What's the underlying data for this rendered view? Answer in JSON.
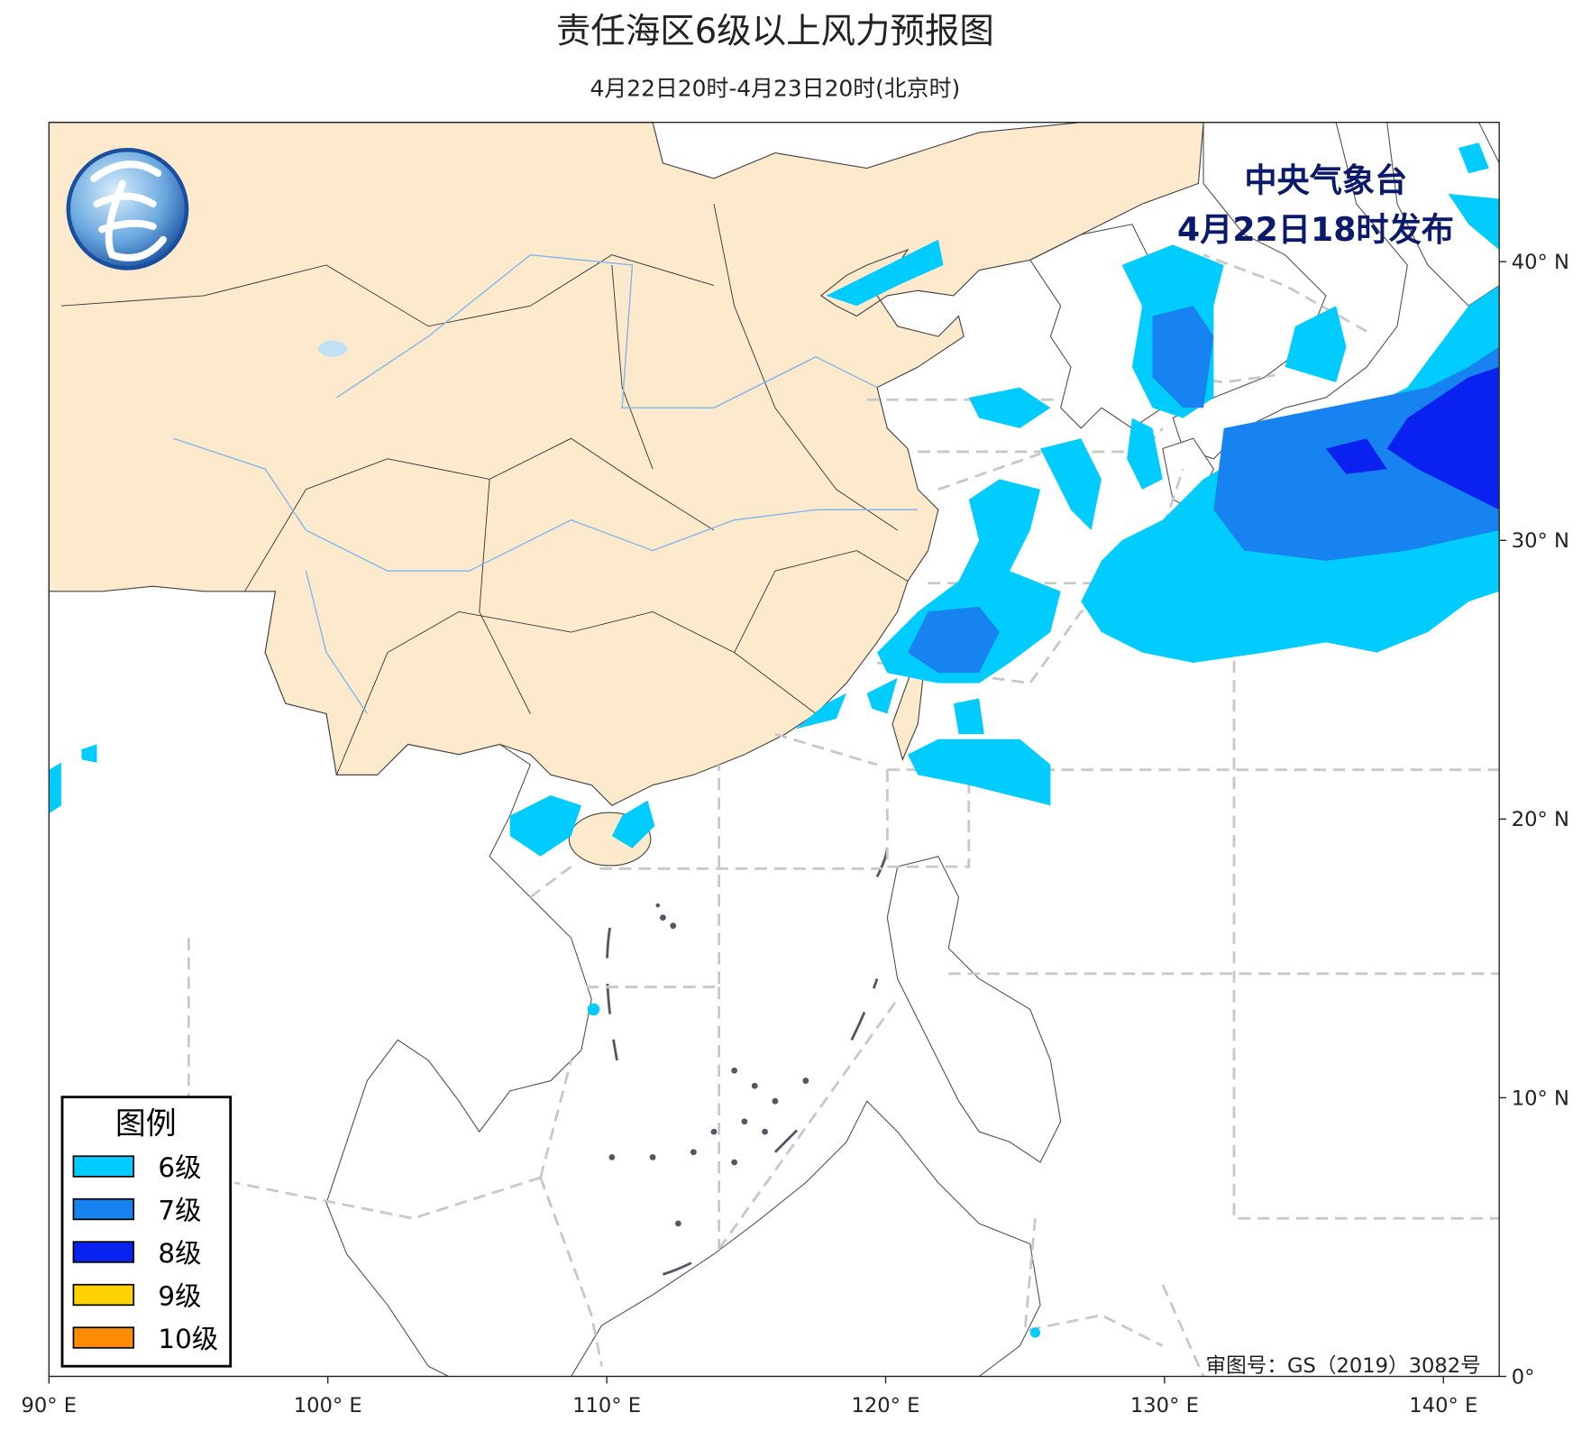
{
  "header": {
    "title": "责任海区6级以上风力预报图",
    "subtitle": "4月22日20时-4月23日20时(北京时)"
  },
  "issuer": {
    "name": "中央气象台",
    "time": "4月22日18时发布"
  },
  "legend": {
    "title": "图例",
    "items": [
      {
        "label": "6级",
        "color": "#00ccff"
      },
      {
        "label": "7级",
        "color": "#1683f0"
      },
      {
        "label": "8级",
        "color": "#0a22f0"
      },
      {
        "label": "9级",
        "color": "#ffd200"
      },
      {
        "label": "10级",
        "color": "#ff8c00"
      }
    ]
  },
  "map": {
    "xlim": [
      90,
      142
    ],
    "ylim": [
      0,
      45
    ],
    "xticks": [
      {
        "value": 90,
        "label": "90° E"
      },
      {
        "value": 100,
        "label": "100° E"
      },
      {
        "value": 110,
        "label": "110° E"
      },
      {
        "value": 120,
        "label": "120° E"
      },
      {
        "value": 130,
        "label": "130° E"
      },
      {
        "value": 140,
        "label": "140° E"
      }
    ],
    "yticks": [
      {
        "value": 0,
        "label": "0°"
      },
      {
        "value": 10,
        "label": "10° N"
      },
      {
        "value": 20,
        "label": "20° N"
      },
      {
        "value": 30,
        "label": "30° N"
      },
      {
        "value": 40,
        "label": "40° N"
      }
    ]
  },
  "footer": {
    "approval": "审图号：GS（2019）3082号"
  }
}
